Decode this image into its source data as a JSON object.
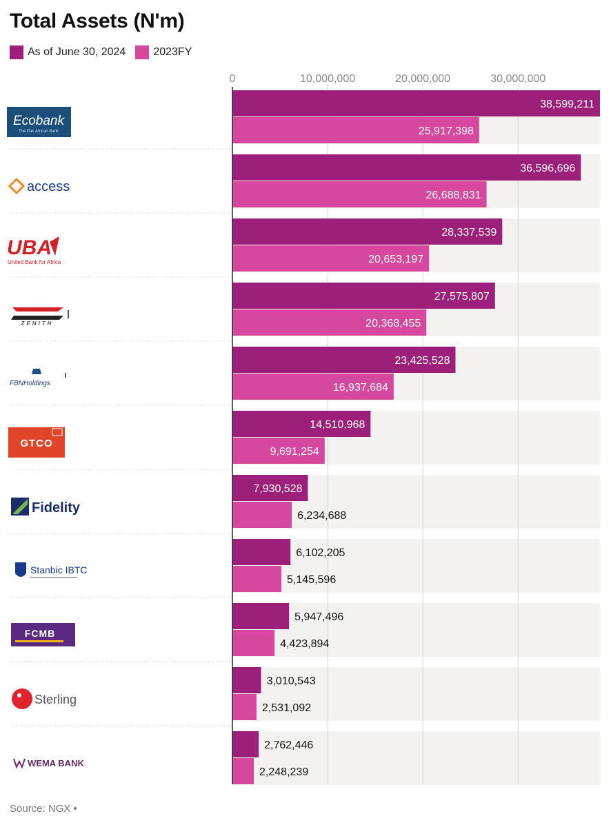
{
  "chart_data": {
    "type": "bar",
    "orientation": "horizontal",
    "title": "Total Assets (N'm)",
    "categories": [
      "Ecobank",
      "access",
      "UBA",
      "Zenith",
      "FBNHoldings",
      "GTCO",
      "Fidelity",
      "Stanbic IBTC",
      "FCMB",
      "Sterling",
      "WEMA BANK"
    ],
    "series": [
      {
        "name": "As of June 30, 2024",
        "color": "#9c1f7a",
        "values": [
          38599211,
          36596696,
          28337539,
          27575807,
          23425528,
          14510968,
          7930528,
          6102205,
          5947496,
          3010543,
          2762446
        ]
      },
      {
        "name": "2023FY",
        "color": "#d6489d",
        "values": [
          25917398,
          26688831,
          20653197,
          20368455,
          16937684,
          9691254,
          6234688,
          5145596,
          4423894,
          2531092,
          2248239
        ]
      }
    ],
    "value_labels": [
      [
        "38,599,211",
        "25,917,398"
      ],
      [
        "36,596,696",
        "26,688,831"
      ],
      [
        "28,337,539",
        "20,653,197"
      ],
      [
        "27,575,807",
        "20,368,455"
      ],
      [
        "23,425,528",
        "16,937,684"
      ],
      [
        "14,510,968",
        "9,691,254"
      ],
      [
        "7,930,528",
        "6,234,688"
      ],
      [
        "6,102,205",
        "5,145,596"
      ],
      [
        "5,947,496",
        "4,423,894"
      ],
      [
        "3,010,543",
        "2,531,092"
      ],
      [
        "2,762,446",
        "2,248,239"
      ]
    ],
    "xlim": [
      0,
      38599211
    ],
    "xticks": [
      0,
      10000000,
      20000000,
      30000000
    ],
    "xtick_labels": [
      "0",
      "10,000,000",
      "20,000,000",
      "30,000,000"
    ],
    "grid": true,
    "legend_position": "top-left"
  },
  "logos": [
    {
      "name": "ecobank-logo",
      "text": "Ecobank",
      "subtext": "The Pan African Bank"
    },
    {
      "name": "access-logo",
      "text": "access"
    },
    {
      "name": "uba-logo",
      "text": "UBA",
      "subtext": "United Bank for Africa"
    },
    {
      "name": "zenith-logo",
      "text": "ZENITH"
    },
    {
      "name": "fbn-logo",
      "text": "FBNHoldings"
    },
    {
      "name": "gtco-logo",
      "text": "GTCO"
    },
    {
      "name": "fidelity-logo",
      "text": "Fidelity"
    },
    {
      "name": "stanbic-logo",
      "text": "Stanbic IBTC"
    },
    {
      "name": "fcmb-logo",
      "text": "FCMB"
    },
    {
      "name": "sterling-logo",
      "text": "Sterling"
    },
    {
      "name": "wema-logo",
      "text": "WEMA BANK"
    }
  ],
  "source": "Source: NGX •"
}
